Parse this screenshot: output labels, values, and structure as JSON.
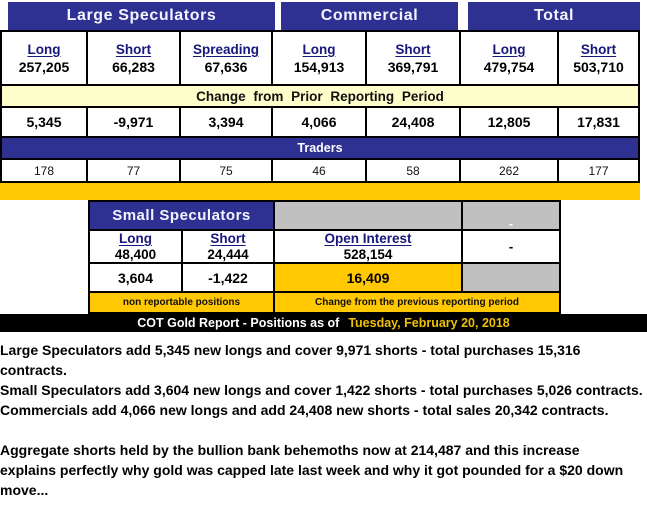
{
  "colors": {
    "header_blue": "#2E3192",
    "pale_yellow": "#FFFFCC",
    "gold": "#FFC800",
    "gray_cell": "#C0C0C0",
    "black_bar": "#000000",
    "date_gold": "#EFC000",
    "column_header_navy": "#17177C"
  },
  "main_table": {
    "group_headers": [
      "Large Speculators",
      "Commercial",
      "Total"
    ],
    "change_band_label": "Change from Prior Reporting Period",
    "traders_band_label": "Traders",
    "columns": [
      {
        "header": "Long",
        "position": "257,205",
        "change": "5,345",
        "traders": "178"
      },
      {
        "header": "Short",
        "position": "66,283",
        "change": "-9,971",
        "traders": "77"
      },
      {
        "header": "Spreading",
        "position": "67,636",
        "change": "3,394",
        "traders": "75"
      },
      {
        "header": "Long",
        "position": "154,913",
        "change": "4,066",
        "traders": "46"
      },
      {
        "header": "Short",
        "position": "369,791",
        "change": "24,408",
        "traders": "58"
      },
      {
        "header": "Long",
        "position": "479,754",
        "change": "12,805",
        "traders": "262"
      },
      {
        "header": "Short",
        "position": "503,710",
        "change": "17,831",
        "traders": "177"
      }
    ]
  },
  "small_table": {
    "title": "Small Speculators",
    "long_header": "Long",
    "long_position": "48,400",
    "long_change": "3,604",
    "short_header": "Short",
    "short_position": "24,444",
    "short_change": "-1,422",
    "oi_header": "Open Interest",
    "oi_value": "528,154",
    "oi_change": "16,409",
    "dash_top": "-",
    "dash_mid": "-",
    "footnote_left": "non reportable positions",
    "footnote_right": "Change from the previous reporting period"
  },
  "title_bar": {
    "label": "COT Gold Report - Positions as of",
    "date": "Tuesday, February 20, 2018"
  },
  "commentary": {
    "lines": [
      "Large Speculators add 5,345 new longs and cover 9,971 shorts - total purchases 15,316",
      "contracts.",
      "Small Speculators add 3,604 new longs and cover 1,422 shorts - total purchases 5,026 contracts.",
      "Commercials add 4,066 new longs and add 24,408 new shorts - total sales 20,342 contracts.",
      "",
      "Aggregate shorts held by the bullion bank behemoths now at 214,487 and this increase",
      "explains perfectly why gold was capped late last week and why it got pounded for a $20 down",
      "move..."
    ]
  }
}
